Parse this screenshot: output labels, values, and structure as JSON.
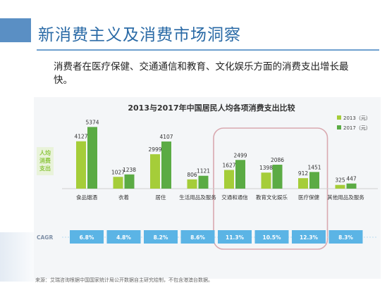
{
  "slide": {
    "title": "新消费主义及消费市场洞察",
    "subtitle": "消费者在医疗保健、交通通信和教育、文化娱乐方面的消费支出增长最快。",
    "source": "来源：艾瑞咨询根据中国国家统计局公开数据自主研究绘制，不包含港澳台数据。"
  },
  "colors": {
    "bar_2013": "#a5cd39",
    "bar_2017": "#5bab44",
    "cagr_box": "#5bb4e5",
    "highlight": "#d9a9b0",
    "ylabel": "#8cc63f"
  },
  "chart_data": {
    "type": "bar",
    "title": "2013与2017年中国居民人均各项消费支出比较",
    "ylabel": "人均消费支出",
    "categories": [
      "食品烟酒",
      "衣着",
      "居住",
      "生活用品及服务",
      "交通和通信",
      "教育文化娱乐",
      "医疗保健",
      "其他用品及服务"
    ],
    "series": [
      {
        "name": "2013（元）",
        "values": [
          4127,
          1027,
          2999,
          806,
          1627,
          1398,
          912,
          325
        ]
      },
      {
        "name": "2017（元）",
        "values": [
          5374,
          1238,
          4107,
          1121,
          2499,
          2086,
          1451,
          447
        ]
      }
    ],
    "cagr_label": "CAGR",
    "cagr": [
      "6.8%",
      "4.8%",
      "8.2%",
      "8.6%",
      "11.3%",
      "10.5%",
      "12.3%",
      "8.3%"
    ],
    "highlighted_categories": [
      "交通和通信",
      "教育文化娱乐",
      "医疗保健"
    ],
    "legend_position": "top-right",
    "ylim": [
      0,
      5600
    ]
  }
}
